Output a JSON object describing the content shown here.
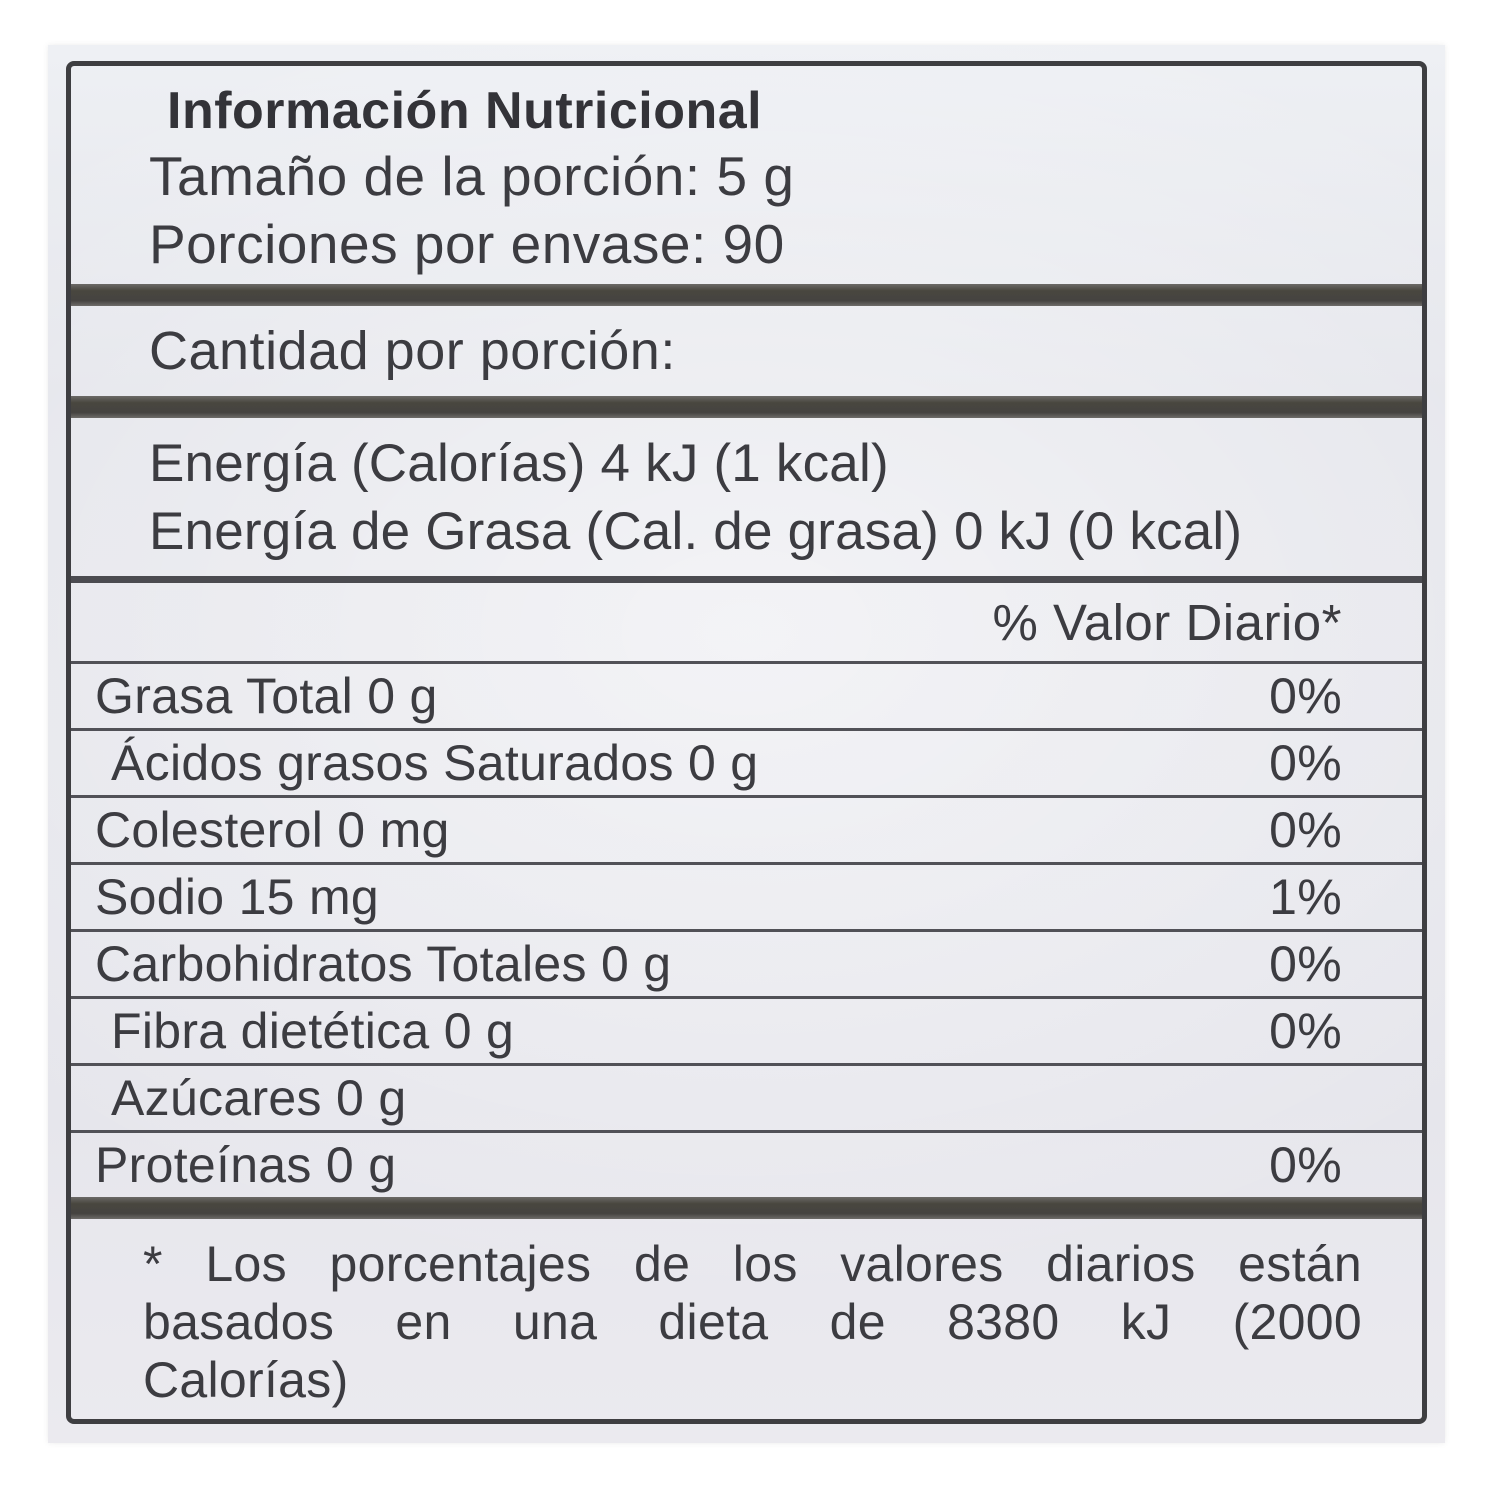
{
  "label": {
    "title": "Información Nutricional",
    "serving_size": "Tamaño de la porción: 5 g",
    "servings_per_container": "Porciones por envase: 90",
    "amount_per_serving": "Cantidad por porción:",
    "energy_lines": [
      "Energía (Calorías) 4 kJ (1 kcal)",
      "Energía de Grasa  (Cal. de grasa) 0 kJ (0 kcal)"
    ],
    "daily_value_header": "% Valor Diario*",
    "nutrients": [
      {
        "label": "Grasa Total 0 g",
        "daily_value": "0%"
      },
      {
        "label": "Ácidos grasos Saturados 0 g",
        "daily_value": "0%"
      },
      {
        "label": "Colesterol 0 mg",
        "daily_value": "0%"
      },
      {
        "label": "Sodio 15 mg",
        "daily_value": "1%"
      },
      {
        "label": "Carbohidratos Totales 0 g",
        "daily_value": "0%"
      },
      {
        "label": "Fibra dietética 0 g",
        "daily_value": "0%"
      },
      {
        "label": "Azúcares 0 g",
        "daily_value": ""
      },
      {
        "label": "Proteínas 0 g",
        "daily_value": "0%"
      }
    ],
    "footnote_lines": [
      "* Los porcentajes de los valores diarios están",
      "basados en una dieta de 8380 kJ (2000",
      "Calorías)"
    ]
  },
  "colors": {
    "paper": "#e6e6ec",
    "ink": "#3c3c41",
    "divider": "#454340",
    "border": "#3e3e41",
    "background": "#ffffff"
  }
}
